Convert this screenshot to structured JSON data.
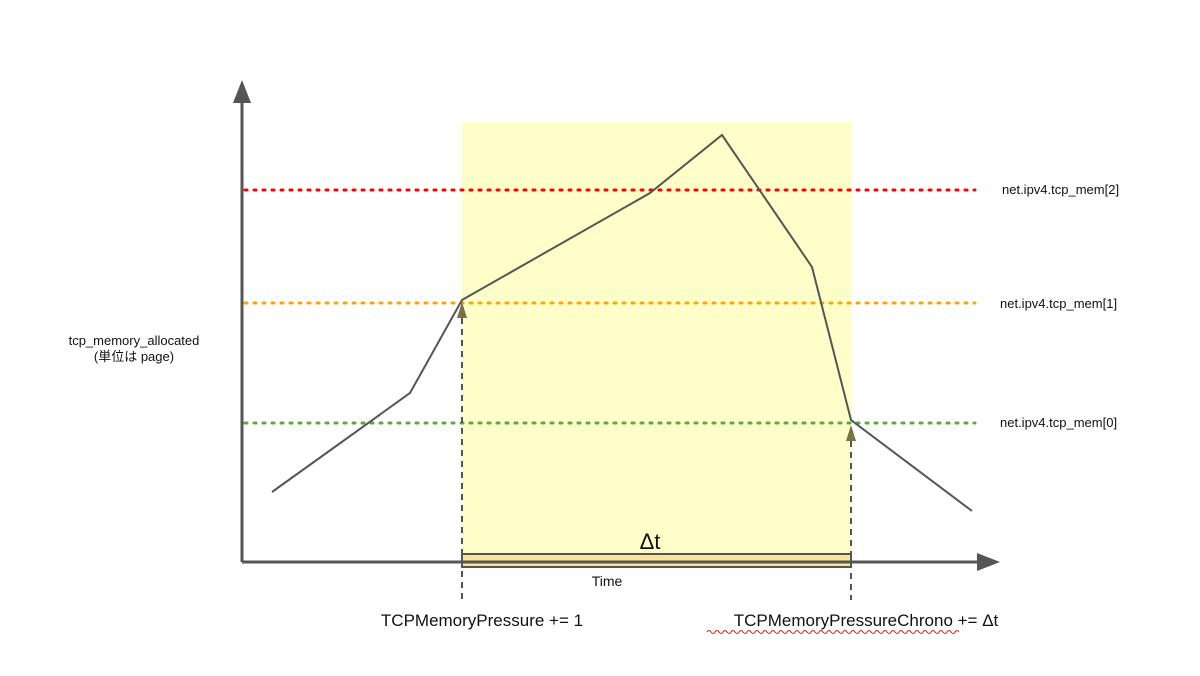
{
  "y_axis_label": {
    "line1": "tcp_memory_allocated",
    "line2": "(単位は page)"
  },
  "x_axis_label": "Time",
  "delta_label": "Δt",
  "events": {
    "start": "TCPMemoryPressure += 1",
    "end": "TCPMemoryPressureChrono += Δt"
  },
  "thresholds": [
    {
      "name": "net.ipv4.tcp_mem[2]",
      "level": 2,
      "color": "#ff0000"
    },
    {
      "name": "net.ipv4.tcp_mem[1]",
      "level": 1,
      "color": "#ffa500"
    },
    {
      "name": "net.ipv4.tcp_mem[0]",
      "level": 0,
      "color": "#5aaa3c"
    }
  ],
  "colors": {
    "axis": "#555555",
    "curve": "#555555",
    "pressure_region": "#fefec8",
    "delta_bar": "#fde49a",
    "event_marker": "#7a7040"
  }
}
